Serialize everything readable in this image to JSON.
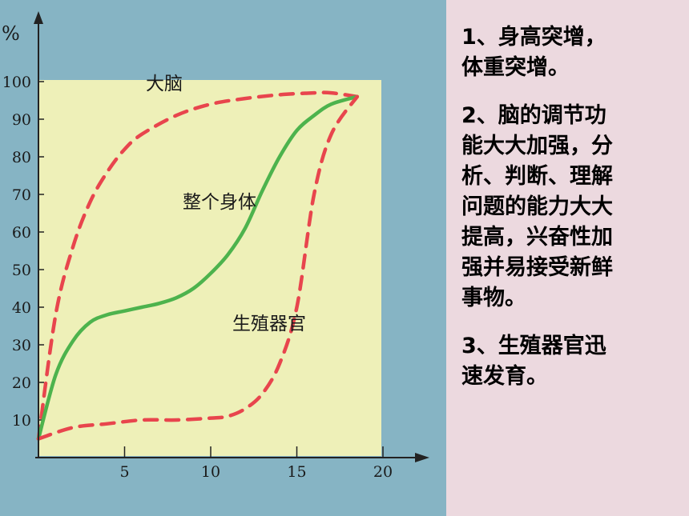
{
  "slide": {
    "points": [
      "1、身高突增，\n体重突增。",
      "2、脑的调节功\n能大大加强，分\n析、判断、理解\n问题的能力大大\n提高，兴奋性加\n强并易接受新鲜\n事物。",
      "3、生殖器官迅\n速发育。"
    ]
  },
  "chart_data": {
    "type": "line",
    "ylabel": "%",
    "xlim": [
      0,
      20
    ],
    "ylim": [
      0,
      100
    ],
    "xticks": [
      5,
      10,
      15,
      20
    ],
    "yticks": [
      10,
      20,
      30,
      40,
      50,
      60,
      70,
      80,
      90,
      100
    ],
    "series": [
      {
        "name": "大脑",
        "style": "dashed",
        "color": "#e8454d",
        "x": [
          0,
          1,
          2,
          3,
          4,
          5,
          6,
          8,
          10,
          12,
          14,
          16,
          17,
          18.5
        ],
        "y": [
          5,
          38,
          56,
          68,
          76,
          82,
          86,
          91,
          94,
          95.5,
          96.5,
          97,
          97,
          96
        ]
      },
      {
        "name": "整个身体",
        "style": "solid",
        "color": "#4db34d",
        "x": [
          0,
          1,
          2,
          3,
          4,
          5,
          6,
          7,
          8,
          9,
          10,
          11,
          12,
          13,
          14,
          15,
          16,
          17,
          18.5
        ],
        "y": [
          5,
          22,
          31,
          36,
          38,
          39,
          40,
          41,
          42.5,
          45,
          49,
          54,
          61,
          71,
          80,
          87,
          91,
          94,
          96
        ]
      },
      {
        "name": "生殖器官",
        "style": "dashed",
        "color": "#e8454d",
        "x": [
          0,
          2,
          4,
          6,
          8,
          10,
          11,
          12,
          13,
          14,
          15,
          16,
          17,
          18.5
        ],
        "y": [
          5,
          8,
          9,
          10,
          10,
          10.5,
          11,
          13,
          17,
          25,
          40,
          70,
          86,
          96
        ]
      }
    ]
  }
}
